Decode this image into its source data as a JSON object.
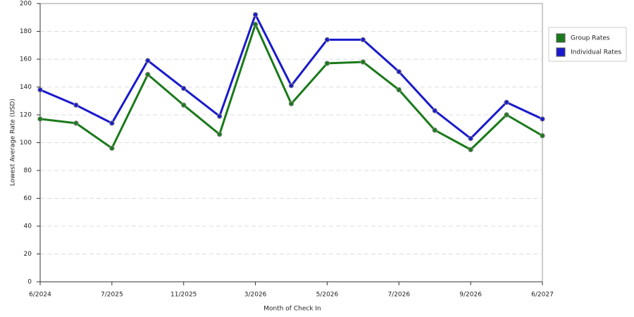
{
  "chart_data": {
    "type": "line",
    "x_label": "Month of Check In",
    "y_label": "Lowest Average Rate (USD)",
    "categories": [
      "6/2024",
      null,
      "7/2025",
      null,
      "11/2025",
      null,
      "3/2026",
      null,
      "5/2026",
      null,
      "7/2026",
      null,
      "9/2026",
      null,
      "6/2027"
    ],
    "series": [
      {
        "name": "Group Rates",
        "color": "#1a7a1a",
        "values": [
          117,
          114,
          96,
          149,
          127,
          106,
          185,
          128,
          157,
          158,
          138,
          109,
          95,
          120,
          105
        ]
      },
      {
        "name": "Individual Rates",
        "color": "#1a1acc",
        "values": [
          138,
          127,
          114,
          159,
          139,
          119,
          192,
          141,
          174,
          174,
          151,
          123,
          103,
          129,
          117
        ]
      }
    ],
    "ylim": [
      0,
      200
    ],
    "yticks": [
      0,
      20,
      40,
      60,
      80,
      100,
      120,
      140,
      160,
      180,
      200
    ],
    "grid": true,
    "legend": "right"
  }
}
